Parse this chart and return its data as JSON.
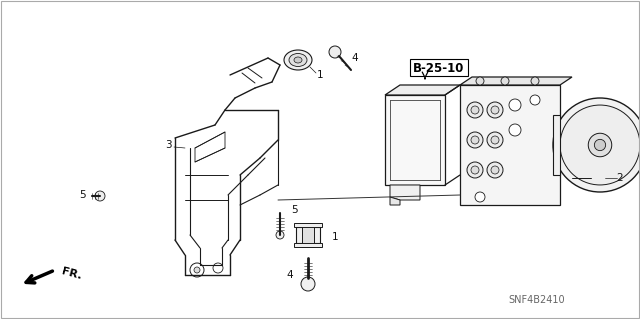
{
  "bg_color": "#ffffff",
  "figsize": [
    6.4,
    3.19
  ],
  "dpi": 100,
  "part_label": "B-25-10",
  "part_code": "SNF4B2410",
  "fr_label": "FR.",
  "line_color": "#1a1a1a",
  "label_color": "#111111"
}
